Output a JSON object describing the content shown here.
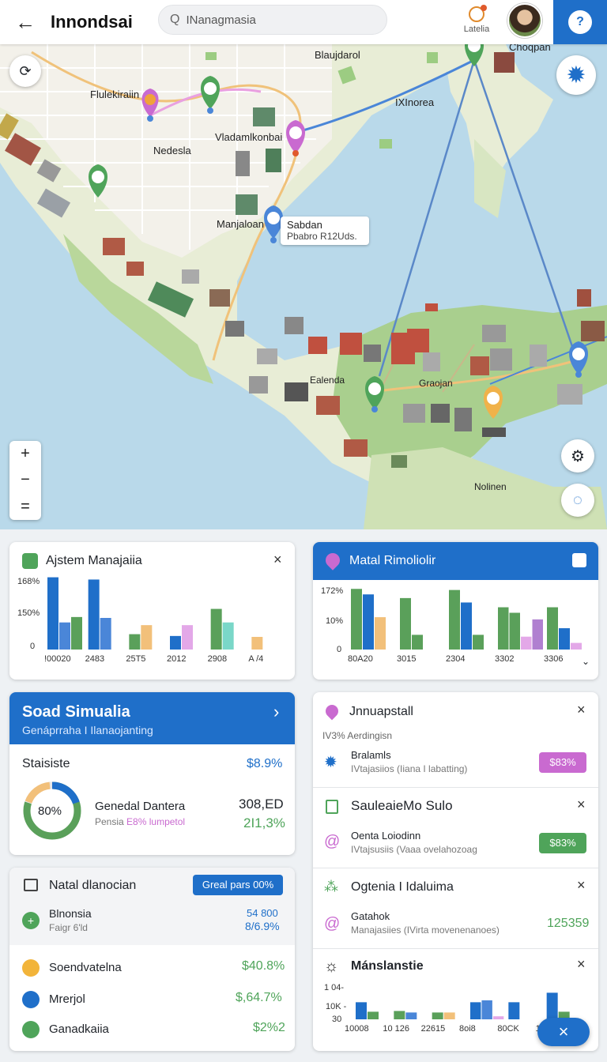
{
  "header": {
    "back_glyph": "←",
    "title": "Innondsai",
    "search_placeholder": "INanagmasia",
    "notif_label": "Latelia",
    "loc_glyph": "?"
  },
  "map": {
    "labels": {
      "a": "Blaujdarol",
      "b": "Choqpan",
      "c": "Flulekiraiin",
      "d": "IXInorea",
      "e": "Vladamlkonbai",
      "f": "Nedesla",
      "g": "Manjaloan",
      "h": "Ealenda",
      "i": "Graojan",
      "j": "Nolinen"
    },
    "callout": {
      "title": "Sabdan",
      "sub": "Pbabro R12Uds."
    },
    "zoom": {
      "in": "+",
      "mid": "−",
      "out": "="
    }
  },
  "card1": {
    "title": "Ajstem Manajaiia",
    "close": "×",
    "y_ticks": [
      "168%",
      "150%",
      "0"
    ],
    "x_ticks": [
      "!00020",
      "2483",
      "25T5",
      "2012",
      "2908",
      "A /4"
    ]
  },
  "card2": {
    "title": "Matal Rimoliolir",
    "y_ticks": [
      "172%",
      "10%",
      "0"
    ],
    "x_ticks": [
      "80A20",
      "3015",
      "2304",
      "3302",
      "3306"
    ]
  },
  "card3": {
    "title": "Soad Simualia",
    "subtitle": "Genáprraha I Ilanaojanting",
    "stat_label": "Staisiste",
    "stat_value": "$8.9%",
    "donut_label": "80%",
    "donut_value": 0.8,
    "row_title": "Genedal Dantera",
    "row_sub1": "Pensia",
    "row_sub2": "E8% lumpetol",
    "amount": "308,ED",
    "amount_pct": "2I1,3%"
  },
  "card4": {
    "title": "Natal dlanocian",
    "pill": "Greal pars 00%",
    "rows": [
      {
        "title": "Blnonsia",
        "sub": "Faigr 6'ld",
        "v1": "54 800",
        "v2": "8/6.9%"
      },
      {
        "title": "Soendvatelna",
        "v2": "$40.8%"
      },
      {
        "title": "Mrerjol",
        "v2": "$,64.7%"
      },
      {
        "title": "Ganadkaiia",
        "v2": "$2%2"
      }
    ]
  },
  "card5": {
    "title": "Jnnuapstall",
    "sub": "IV3% Aerdingisn",
    "item_title": "Bralamls",
    "item_sub": "IVtajasiios (Iiana I labatting)",
    "pill": "$83%"
  },
  "card6": {
    "title": "SauleaieMo Sulo",
    "item_title": "Oenta Loiodinn",
    "item_sub": "IVtajsusiis (Vaaa ovelahozoag",
    "pill": "$83%"
  },
  "card7": {
    "title": "Ogtenia I Idaluima",
    "item_title": "Gatahok",
    "item_sub": "Manajasiies (IVirta movenenanoes)",
    "value": "125359"
  },
  "card8": {
    "title": "Mánslanstie",
    "y_ticks": [
      "1 04-",
      "10K -",
      "30"
    ],
    "x_ticks": [
      "10008",
      "10 126",
      "22615",
      "8oi8",
      "80CK",
      "10"
    ]
  },
  "fab_glyph": "×",
  "chart_data": [
    {
      "type": "bar",
      "categories": [
        "!00020",
        "2483",
        "25T5",
        "2012",
        "2908",
        "A /4"
      ],
      "series": [
        {
          "color": "#1f6fc9",
          "values": [
            160,
            155,
            0,
            30,
            0,
            0
          ]
        },
        {
          "color": "#4a86d8",
          "values": [
            60,
            70,
            0,
            0,
            0,
            0
          ]
        },
        {
          "color": "#5aa05a",
          "values": [
            72,
            0,
            34,
            0,
            90,
            0
          ]
        },
        {
          "color": "#f2c07a",
          "values": [
            0,
            0,
            54,
            0,
            0,
            28
          ]
        },
        {
          "color": "#e3a8e8",
          "values": [
            0,
            0,
            0,
            54,
            0,
            0
          ]
        },
        {
          "color": "#7ad7c8",
          "values": [
            0,
            0,
            0,
            0,
            60,
            0
          ]
        }
      ],
      "ylim": [
        0,
        168
      ]
    },
    {
      "type": "bar",
      "categories": [
        "80A20",
        "3015",
        "2304",
        "3302",
        "3306"
      ],
      "series": [
        {
          "color": "#5aa05a",
          "values": [
            165,
            140,
            162,
            115,
            115
          ]
        },
        {
          "color": "#1f6fc9",
          "values": [
            150,
            0,
            128,
            0,
            58
          ]
        },
        {
          "color": "#f2c07a",
          "values": [
            88,
            0,
            0,
            0,
            0
          ]
        },
        {
          "color": "#5aa05a",
          "values": [
            0,
            40,
            40,
            100,
            0
          ]
        },
        {
          "color": "#e3a8e8",
          "values": [
            0,
            0,
            0,
            35,
            18
          ]
        },
        {
          "color": "#b080d0",
          "values": [
            0,
            0,
            0,
            82,
            0
          ]
        }
      ],
      "ylim": [
        0,
        172
      ]
    },
    {
      "type": "bar",
      "categories": [
        "10008",
        "10 126",
        "22615",
        "8oi8",
        "80CK",
        "10"
      ],
      "series": [
        {
          "color": "#1f6fc9",
          "values": [
            45,
            0,
            0,
            45,
            45,
            70
          ]
        },
        {
          "color": "#5aa05a",
          "values": [
            20,
            22,
            18,
            0,
            0,
            20
          ]
        },
        {
          "color": "#4a86d8",
          "values": [
            0,
            18,
            0,
            50,
            0,
            0
          ]
        },
        {
          "color": "#f2c07a",
          "values": [
            0,
            0,
            18,
            0,
            0,
            0
          ]
        },
        {
          "color": "#e3a8e8",
          "values": [
            0,
            0,
            0,
            8,
            0,
            0
          ]
        }
      ],
      "ylim": [
        0,
        104
      ]
    }
  ]
}
